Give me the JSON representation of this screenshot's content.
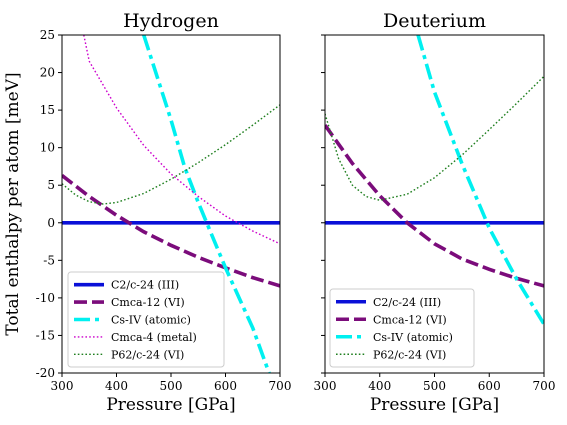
{
  "ylabel": "Total enthalpy per atom [meV]",
  "chart_data": [
    {
      "type": "line",
      "title": "Hydrogen",
      "xlabel": "Pressure [GPa]",
      "ylabel": "Total enthalpy per atom [meV]",
      "xlim": [
        300,
        700
      ],
      "ylim": [
        -20,
        25
      ],
      "xticks": [
        "300",
        "400",
        "500",
        "600",
        "700"
      ],
      "yticks": [
        "-20",
        "-15",
        "-10",
        "-5",
        "0",
        "5",
        "10",
        "15",
        "20",
        "25"
      ],
      "legend_position": "lower-left",
      "grid": false,
      "series": [
        {
          "name": "C2/c-24 (III)",
          "color": "#0a10d8",
          "style": "solid",
          "x": [
            300,
            700
          ],
          "y": [
            0,
            0
          ]
        },
        {
          "name": "Cmca-12 (VI)",
          "color": "#7b0c7b",
          "style": "dashed",
          "x": [
            300,
            350,
            400,
            450,
            500,
            550,
            600,
            650,
            700
          ],
          "y": [
            6.3,
            3.5,
            1.0,
            -1.2,
            -3.0,
            -4.6,
            -6.0,
            -7.3,
            -8.4
          ]
        },
        {
          "name": "Cs-IV (atomic)",
          "color": "#00f0f0",
          "style": "dashdot",
          "x": [
            450,
            500,
            525,
            550,
            600,
            650,
            680
          ],
          "y": [
            25,
            13.7,
            7.4,
            2.7,
            -6.0,
            -14.0,
            -20
          ]
        },
        {
          "name": "Cmca-4 (metal)",
          "color": "#cc00cc",
          "style": "dotted",
          "x": [
            340,
            350,
            400,
            450,
            500,
            550,
            600,
            650,
            700
          ],
          "y": [
            25,
            21.5,
            15.3,
            10.3,
            6.5,
            3.5,
            0.9,
            -1.1,
            -2.8
          ]
        },
        {
          "name": "P62/c-24 (VI)",
          "color": "#1f7f1f",
          "style": "dotted",
          "x": [
            300,
            325,
            350,
            375,
            400,
            450,
            500,
            550,
            600,
            650,
            700
          ],
          "y": [
            5.2,
            3.7,
            2.8,
            2.5,
            2.7,
            3.9,
            5.8,
            8.0,
            10.4,
            13.0,
            15.7
          ]
        }
      ]
    },
    {
      "type": "line",
      "title": "Deuterium",
      "xlabel": "Pressure [GPa]",
      "xlim": [
        300,
        700
      ],
      "ylim": [
        -20,
        25
      ],
      "xticks": [
        "300",
        "400",
        "500",
        "600",
        "700"
      ],
      "legend_position": "lower-left",
      "grid": false,
      "series": [
        {
          "name": "C2/c-24 (III)",
          "color": "#0a10d8",
          "style": "solid",
          "x": [
            300,
            700
          ],
          "y": [
            0,
            0
          ]
        },
        {
          "name": "Cmca-12 (VI)",
          "color": "#7b0c7b",
          "style": "dashed",
          "x": [
            300,
            350,
            400,
            450,
            500,
            550,
            600,
            650,
            700
          ],
          "y": [
            13.0,
            7.9,
            3.6,
            0.0,
            -2.8,
            -4.8,
            -6.2,
            -7.4,
            -8.4
          ]
        },
        {
          "name": "Cs-IV (atomic)",
          "color": "#00f0f0",
          "style": "dashdot",
          "x": [
            470,
            500,
            550,
            600,
            650,
            700
          ],
          "y": [
            25,
            17.4,
            7.9,
            -0.7,
            -7.5,
            -13.5
          ]
        },
        {
          "name": "P62/c-24 (VI)",
          "color": "#1f7f1f",
          "style": "dotted",
          "x": [
            300,
            325,
            350,
            375,
            400,
            450,
            500,
            550,
            600,
            650,
            700
          ],
          "y": [
            14.5,
            8.5,
            5.0,
            3.5,
            3.0,
            3.8,
            6.0,
            9.0,
            12.4,
            15.9,
            19.5
          ]
        }
      ]
    }
  ]
}
